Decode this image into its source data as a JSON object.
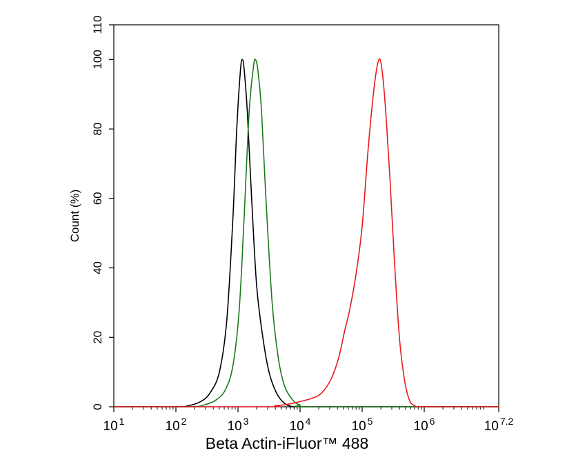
{
  "chart_data": {
    "type": "line",
    "xlabel": "Beta Actin-iFluor™ 488",
    "ylabel": "Count  (%)",
    "xscale": "log",
    "xlim_log10": [
      1,
      7.2
    ],
    "ylim": [
      0,
      110
    ],
    "y_ticks": [
      "0",
      "20",
      "40",
      "60",
      "80",
      "100",
      "110"
    ],
    "x_ticks": [
      {
        "base": "10",
        "exp": "1",
        "log": 1
      },
      {
        "base": "10",
        "exp": "2",
        "log": 2
      },
      {
        "base": "10",
        "exp": "3",
        "log": 3
      },
      {
        "base": "10",
        "exp": "4",
        "log": 4
      },
      {
        "base": "10",
        "exp": "5",
        "log": 5
      },
      {
        "base": "10",
        "exp": "6",
        "log": 6
      },
      {
        "base": "10",
        "exp": "7.2",
        "log": 7.2
      }
    ],
    "grid": false,
    "legend": "none",
    "series": [
      {
        "color": "#000000",
        "points": [
          [
            1.0,
            0
          ],
          [
            2.0,
            0
          ],
          [
            2.2,
            0.3
          ],
          [
            2.4,
            1.5
          ],
          [
            2.55,
            4
          ],
          [
            2.7,
            10
          ],
          [
            2.82,
            25
          ],
          [
            2.92,
            55
          ],
          [
            2.98,
            80
          ],
          [
            3.04,
            97
          ],
          [
            3.07,
            100
          ],
          [
            3.1,
            97
          ],
          [
            3.15,
            85
          ],
          [
            3.22,
            60
          ],
          [
            3.3,
            35
          ],
          [
            3.4,
            20
          ],
          [
            3.5,
            10
          ],
          [
            3.62,
            4
          ],
          [
            3.75,
            1
          ],
          [
            3.9,
            0
          ],
          [
            4.2,
            0
          ],
          [
            7.2,
            0
          ]
        ]
      },
      {
        "color": "#1a7a1a",
        "points": [
          [
            1.0,
            0
          ],
          [
            2.2,
            0
          ],
          [
            2.45,
            0.5
          ],
          [
            2.65,
            2
          ],
          [
            2.8,
            5
          ],
          [
            2.92,
            12
          ],
          [
            3.02,
            28
          ],
          [
            3.1,
            55
          ],
          [
            3.18,
            85
          ],
          [
            3.25,
            98
          ],
          [
            3.28,
            100
          ],
          [
            3.32,
            97
          ],
          [
            3.38,
            85
          ],
          [
            3.45,
            60
          ],
          [
            3.55,
            30
          ],
          [
            3.65,
            14
          ],
          [
            3.75,
            6
          ],
          [
            3.88,
            2
          ],
          [
            4.0,
            0.5
          ],
          [
            4.2,
            0
          ],
          [
            7.2,
            0
          ]
        ]
      },
      {
        "color": "#e8191c",
        "points": [
          [
            1.0,
            0
          ],
          [
            3.45,
            0
          ],
          [
            3.6,
            0.3
          ],
          [
            3.8,
            0.7
          ],
          [
            4.0,
            1.5
          ],
          [
            4.2,
            2.5
          ],
          [
            4.35,
            4
          ],
          [
            4.5,
            8
          ],
          [
            4.62,
            14
          ],
          [
            4.72,
            22
          ],
          [
            4.8,
            28
          ],
          [
            4.9,
            38
          ],
          [
            5.0,
            52
          ],
          [
            5.1,
            75
          ],
          [
            5.2,
            93
          ],
          [
            5.27,
            100
          ],
          [
            5.32,
            97
          ],
          [
            5.38,
            85
          ],
          [
            5.45,
            65
          ],
          [
            5.52,
            42
          ],
          [
            5.6,
            20
          ],
          [
            5.68,
            8
          ],
          [
            5.76,
            2
          ],
          [
            5.85,
            0.3
          ],
          [
            6.0,
            0
          ],
          [
            7.2,
            0
          ]
        ]
      }
    ]
  }
}
